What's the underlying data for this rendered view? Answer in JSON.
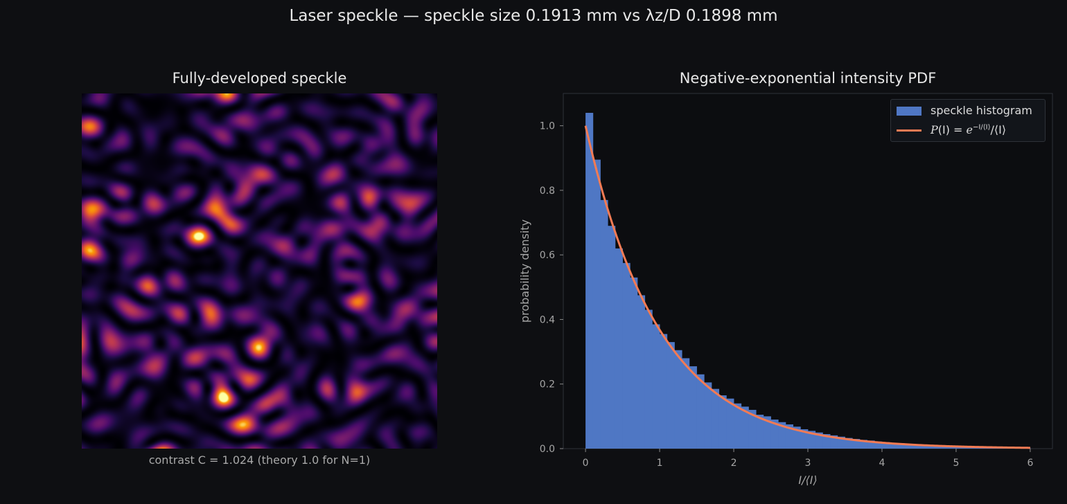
{
  "suptitle": "Laser speckle  —  speckle size 0.1913 mm vs λz/D 0.1898 mm",
  "left_panel": {
    "title": "Fully-developed speckle",
    "caption": "contrast C = 1.024  (theory 1.0 for N=1)",
    "colormap": "inferno"
  },
  "chart_data": {
    "type": "bar",
    "title": "Negative-exponential intensity PDF",
    "xlabel": "I/⟨I⟩",
    "ylabel": "probability density",
    "xlim": [
      -0.3,
      6.3
    ],
    "ylim": [
      0,
      1.1
    ],
    "xticks": [
      0,
      1,
      2,
      3,
      4,
      5,
      6
    ],
    "yticks": [
      0.0,
      0.2,
      0.4,
      0.6,
      0.8,
      1.0
    ],
    "grid": false,
    "legend_position": "top-right",
    "bin_width": 0.1,
    "series": [
      {
        "name": "speckle histogram",
        "kind": "histogram",
        "color": "#4f77c4",
        "bin_start": 0.0,
        "values": [
          1.04,
          0.895,
          0.77,
          0.69,
          0.62,
          0.575,
          0.53,
          0.475,
          0.43,
          0.385,
          0.355,
          0.33,
          0.305,
          0.28,
          0.255,
          0.23,
          0.205,
          0.185,
          0.165,
          0.155,
          0.14,
          0.13,
          0.12,
          0.105,
          0.1,
          0.09,
          0.082,
          0.075,
          0.068,
          0.06,
          0.055,
          0.05,
          0.045,
          0.041,
          0.037,
          0.033,
          0.03,
          0.027,
          0.025,
          0.022,
          0.02,
          0.018,
          0.017,
          0.015,
          0.014,
          0.012,
          0.011,
          0.01,
          0.009,
          0.008,
          0.007,
          0.007,
          0.006,
          0.005,
          0.005,
          0.004,
          0.004,
          0.003,
          0.003,
          0.003
        ]
      },
      {
        "name": "P(I) = e^{−I/⟨I⟩}/⟨I⟩",
        "kind": "line",
        "color": "#f47b54",
        "function": "exp(-x)",
        "x_range": [
          0,
          6
        ]
      }
    ]
  },
  "legend": {
    "hist_label": "speckle histogram",
    "line_label_prefix": "P",
    "line_label_paren": "(I) = ",
    "line_label_base": "e",
    "line_label_exp": "−I/⟨I⟩",
    "line_label_suffix": "/⟨I⟩"
  }
}
